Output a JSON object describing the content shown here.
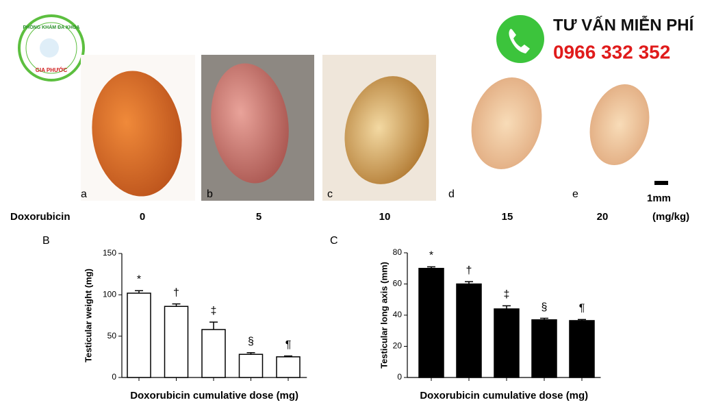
{
  "logo": {
    "top_text": "PHÒNG KHÁM ĐA KHOA",
    "bottom_text": "GIA PHƯỚC"
  },
  "banner": {
    "title": "TƯ VẤN MIỄN PHÍ",
    "phone": "0966 332 352"
  },
  "figure_a": {
    "panels": [
      "a",
      "b",
      "c",
      "d",
      "e"
    ],
    "scale_bar": "1mm",
    "row_label": "Doxorubicin",
    "doses": [
      0,
      5,
      10,
      15,
      20
    ],
    "unit": "(mg/kg)"
  },
  "chart_data": [
    {
      "type": "bar",
      "panel_label": "B",
      "y_label": "Testicular weight (mg)",
      "x_label": "Doxorubicin cumulative dose (mg)",
      "categories": [
        null,
        null,
        null,
        null,
        null
      ],
      "values": [
        102,
        86,
        58,
        28,
        25
      ],
      "errors": [
        3,
        3,
        9,
        2,
        1
      ],
      "annotations": [
        "*",
        "†",
        "‡",
        "§",
        "¶"
      ],
      "color": "#ffffff",
      "edge_color": "#000000",
      "ylim": [
        0,
        150
      ],
      "yticks": [
        0,
        50,
        100,
        150
      ]
    },
    {
      "type": "bar",
      "panel_label": "C",
      "y_label": "Testicular long axis (mm)",
      "x_label": "Doxorubicin cumulative dose (mg)",
      "categories": [
        null,
        null,
        null,
        null,
        null
      ],
      "values": [
        70,
        60,
        44,
        37,
        36.5
      ],
      "errors": [
        1,
        1.5,
        2,
        1,
        0.7
      ],
      "annotations": [
        "*",
        "†",
        "‡",
        "§",
        "¶"
      ],
      "color": "#000000",
      "edge_color": "#000000",
      "ylim": [
        0,
        80
      ],
      "yticks": [
        0,
        20,
        40,
        60,
        80
      ]
    }
  ]
}
